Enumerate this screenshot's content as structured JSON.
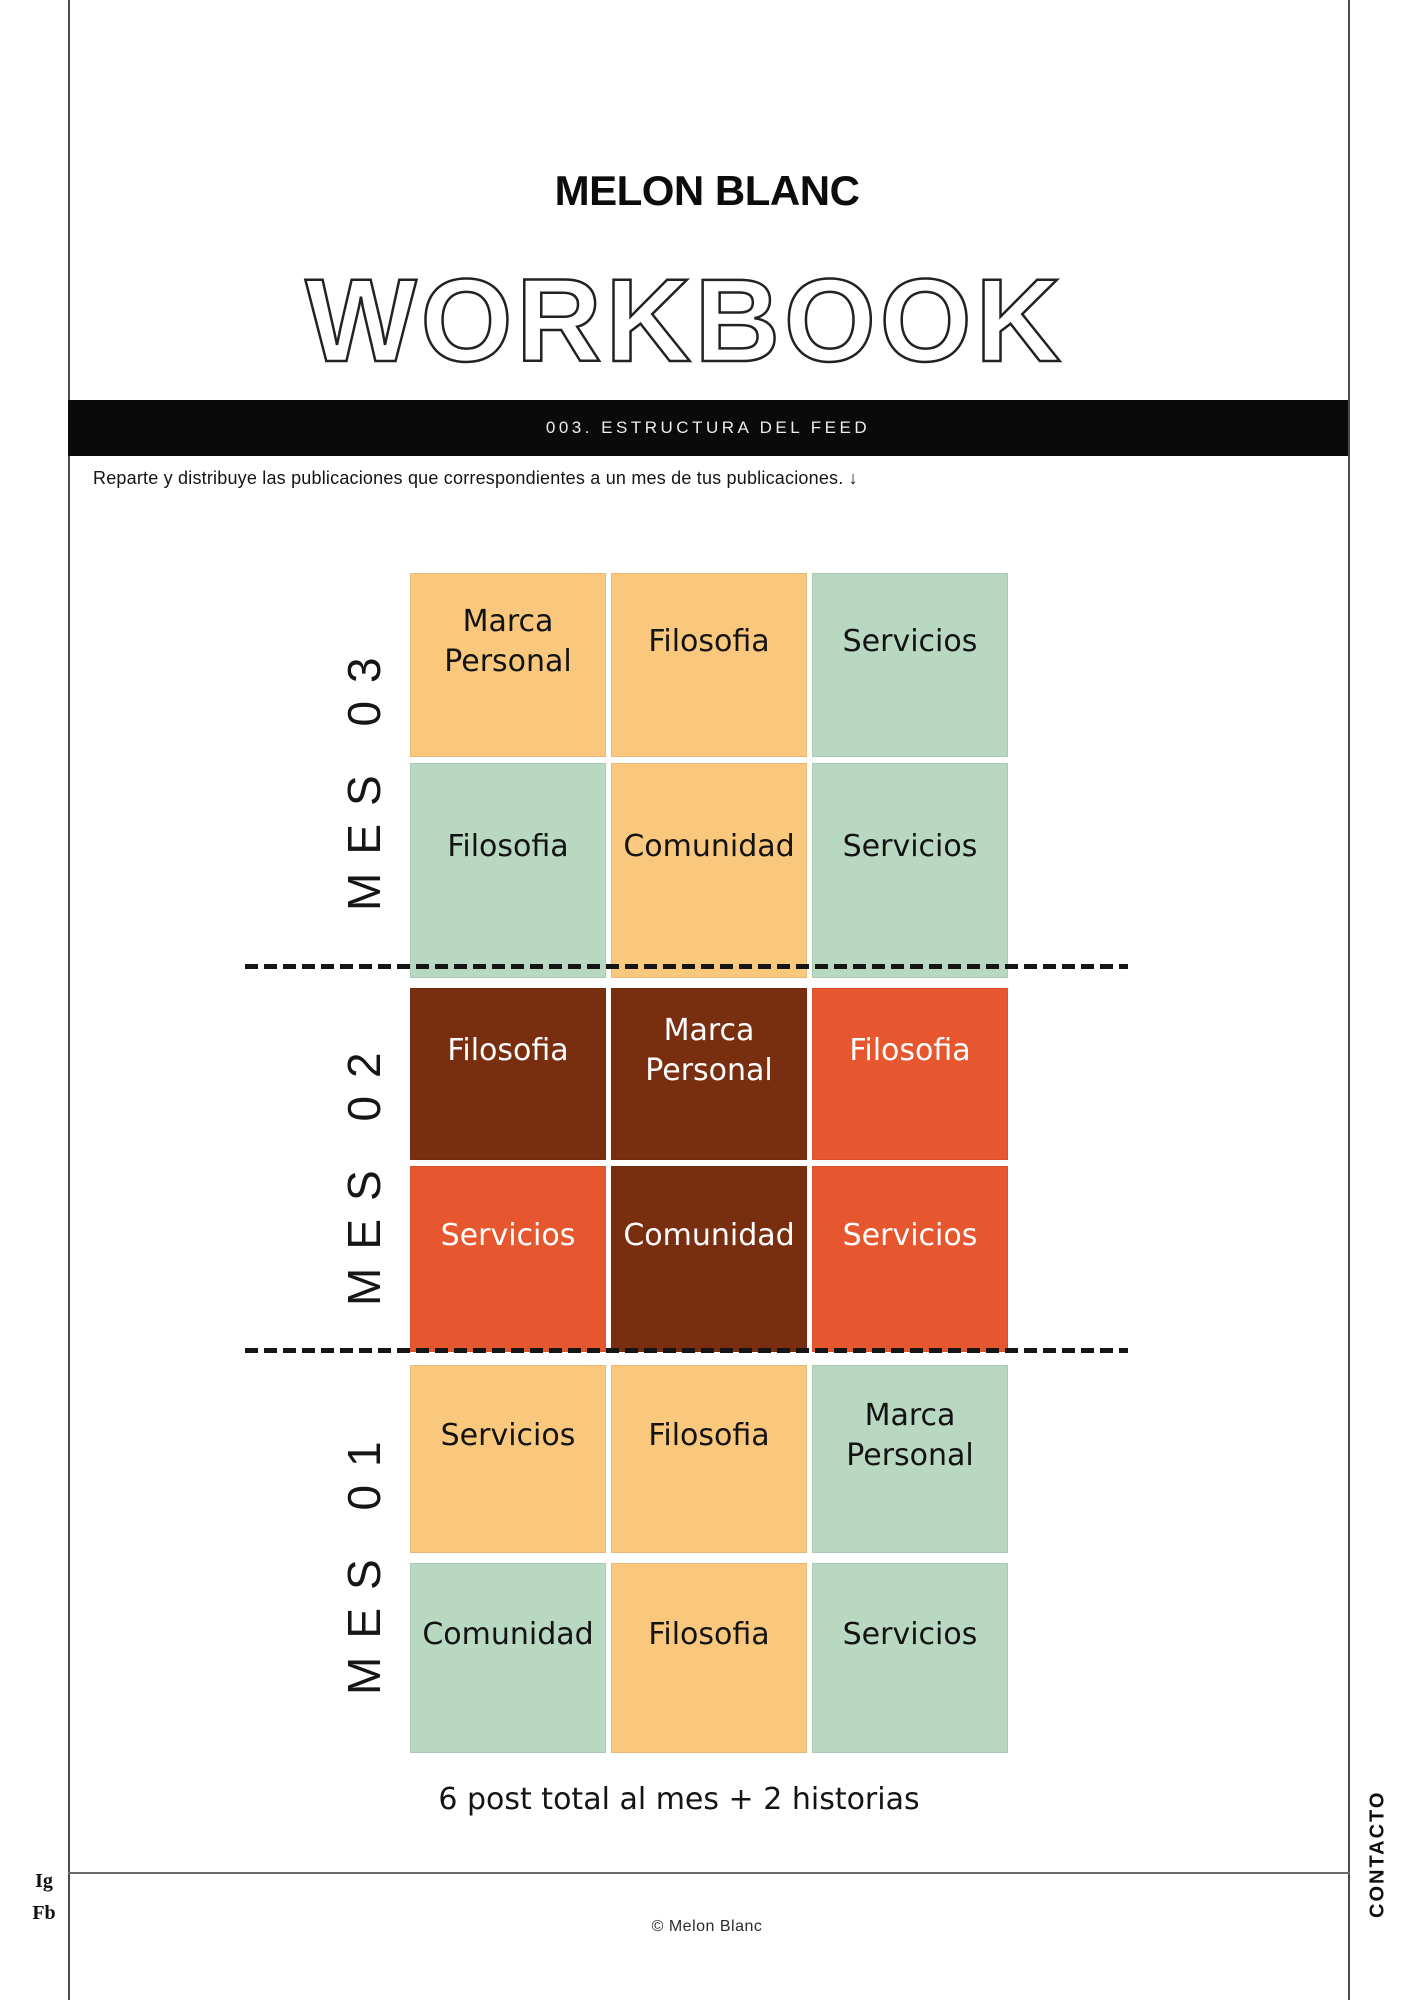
{
  "page": {
    "brand": "MELON BLANC",
    "display_title": "WORKBOOK",
    "section_banner": "003. ESTRUCTURA DEL FEED",
    "instruction": "Reparte y distribuye las publicaciones que correspondientes a un mes de tus publicaciones. ↓",
    "summary": "6 post total al mes  + 2 historias",
    "copyright": "© Melon Blanc",
    "contact_label": "CONTACTO",
    "social": {
      "instagram": "Ig",
      "facebook": "Fb"
    }
  },
  "colors": {
    "tan": "#FAC87D",
    "green": "#B9D8C2",
    "brown": "#7A2E10",
    "red": "#E6572F",
    "banner_bg": "#0A0A0A",
    "ink": "#111111",
    "white_text_on": [
      "brown",
      "red"
    ]
  },
  "feed": {
    "months": [
      {
        "label": "MES 03",
        "rows": [
          [
            {
              "label": "Marca Personal",
              "color": "tan"
            },
            {
              "label": "Filosofia",
              "color": "tan"
            },
            {
              "label": "Servicios",
              "color": "green"
            }
          ],
          [
            {
              "label": "Filosofia",
              "color": "green"
            },
            {
              "label": "Comunidad",
              "color": "tan"
            },
            {
              "label": "Servicios",
              "color": "green"
            }
          ]
        ]
      },
      {
        "label": "MES 02",
        "rows": [
          [
            {
              "label": "Filosofia",
              "color": "brown"
            },
            {
              "label": "Marca Personal",
              "color": "brown"
            },
            {
              "label": "Filosofia",
              "color": "red"
            }
          ],
          [
            {
              "label": "Servicios",
              "color": "red"
            },
            {
              "label": "Comunidad",
              "color": "brown"
            },
            {
              "label": "Servicios",
              "color": "red"
            }
          ]
        ]
      },
      {
        "label": "MES 01",
        "rows": [
          [
            {
              "label": "Servicios",
              "color": "tan"
            },
            {
              "label": "Filosofia",
              "color": "tan"
            },
            {
              "label": "Marca Personal",
              "color": "green"
            }
          ],
          [
            {
              "label": "Comunidad",
              "color": "green"
            },
            {
              "label": "Filosofia",
              "color": "tan"
            },
            {
              "label": "Servicios",
              "color": "green"
            }
          ]
        ]
      }
    ]
  }
}
